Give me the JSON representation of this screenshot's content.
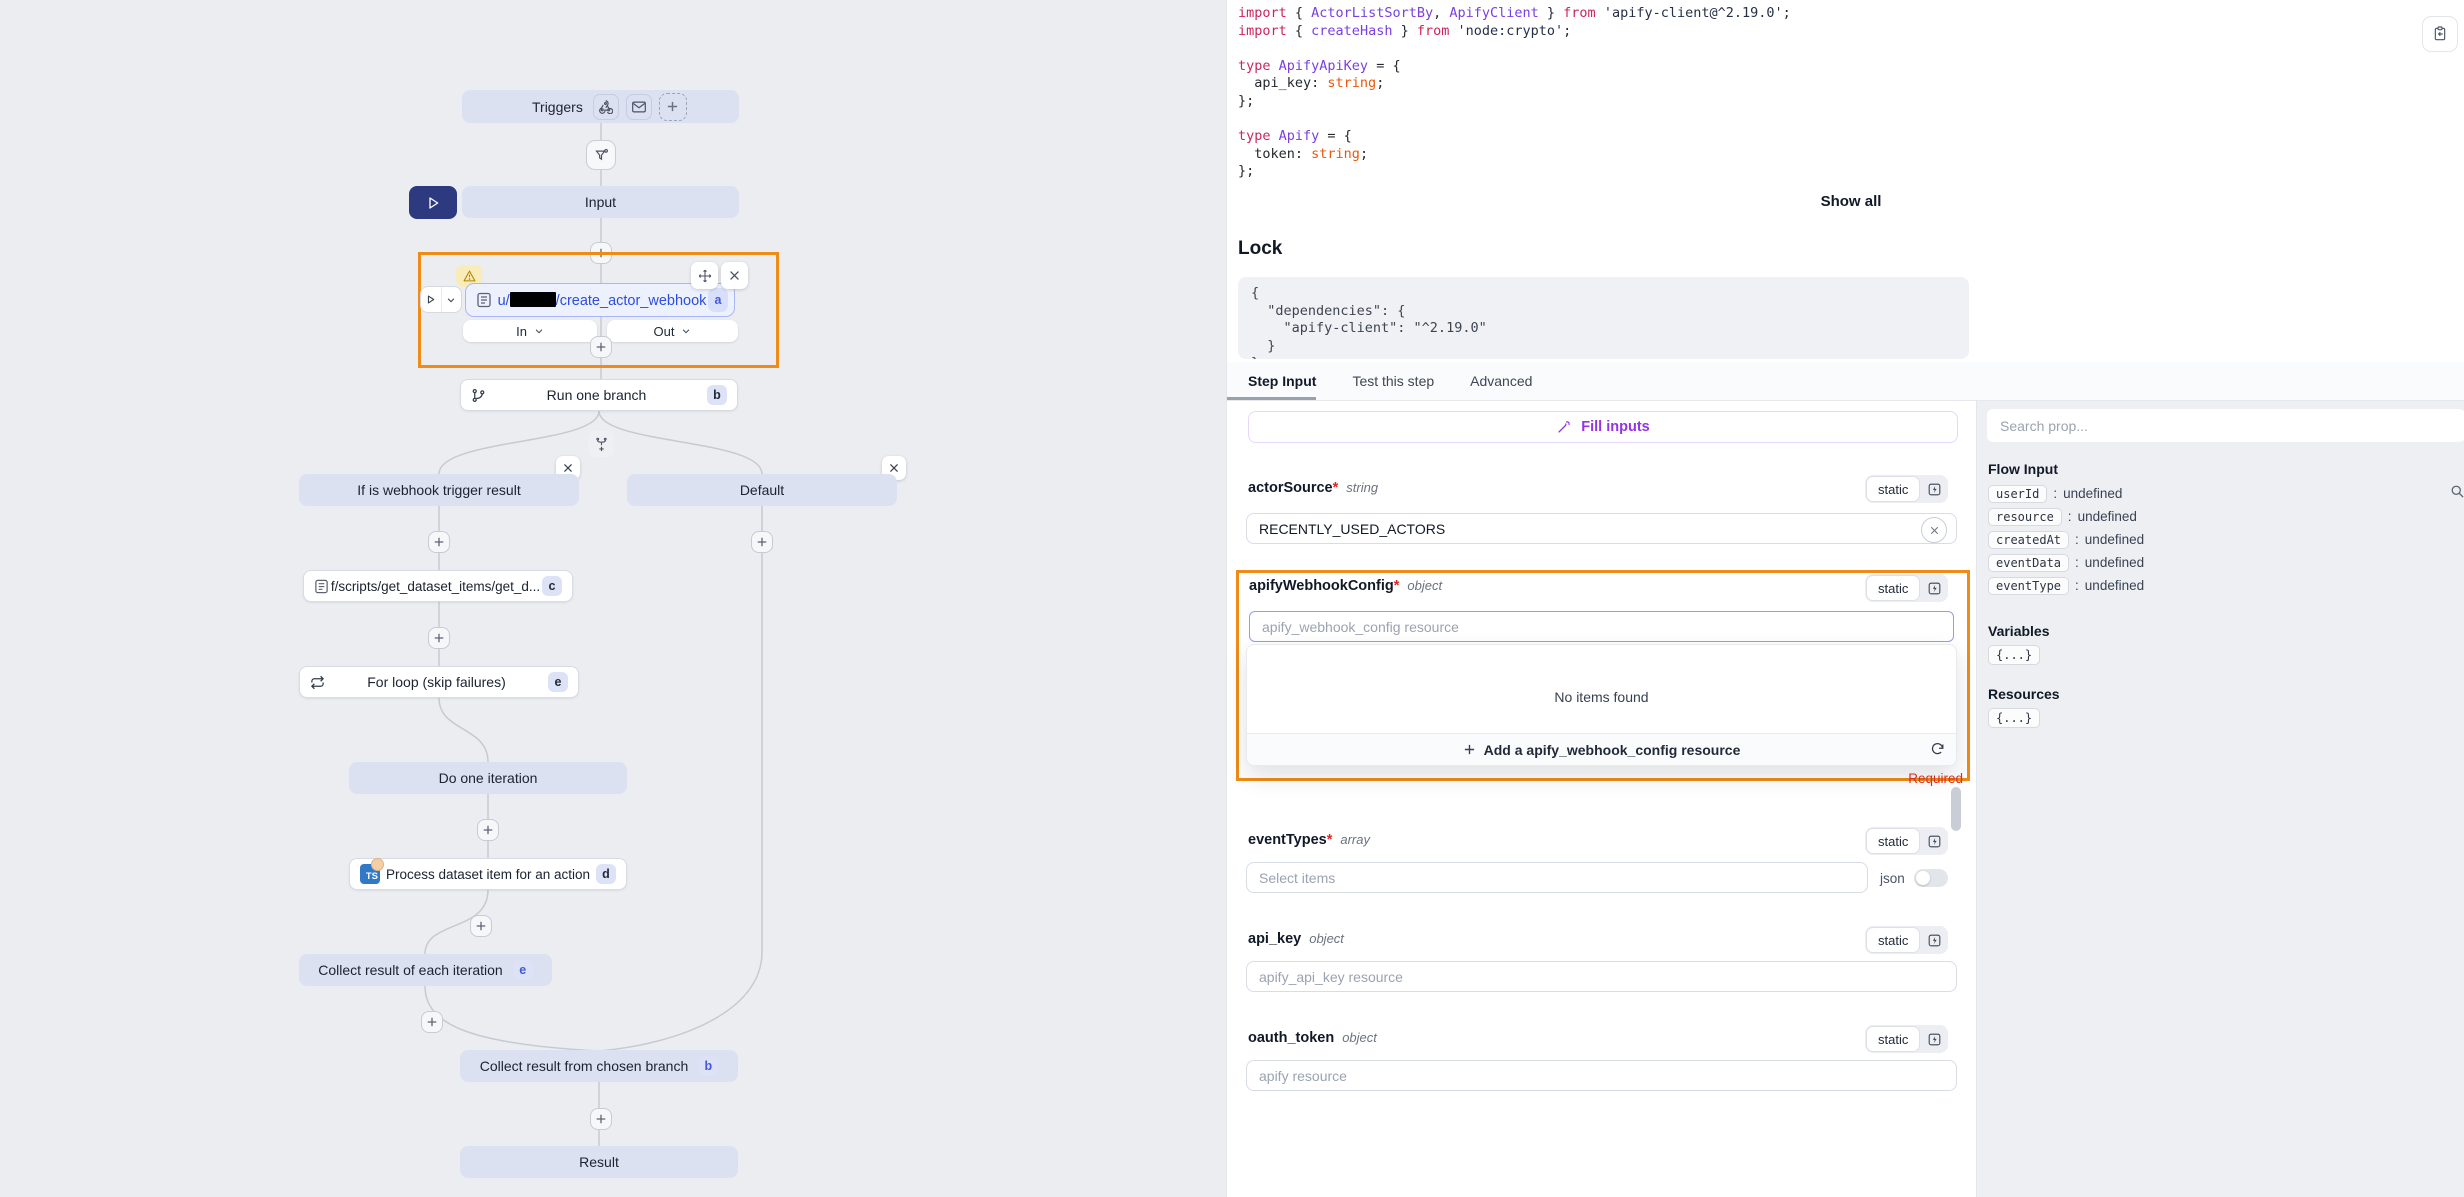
{
  "colors": {
    "highlight_orange": "#ef8b17",
    "accent_purple": "#9333ea",
    "selected_blue": "#2b4de0"
  },
  "canvas": {
    "triggers": {
      "label": "Triggers"
    },
    "input": {
      "label": "Input"
    },
    "selected_node": {
      "prefix": "u/",
      "suffix": "/create_actor_webhook",
      "badge": "a"
    },
    "in_label": "In",
    "out_label": "Out",
    "run_one_branch": {
      "label": "Run one branch",
      "badge": "b"
    },
    "branch_if": {
      "label": "If is webhook trigger result"
    },
    "branch_default": {
      "label": "Default"
    },
    "script_node": {
      "label": "f/scripts/get_dataset_items/get_d...",
      "badge": "c"
    },
    "for_loop": {
      "label": "For loop (skip failures)",
      "badge": "e"
    },
    "do_one_iteration": {
      "label": "Do one iteration"
    },
    "process_node": {
      "label": "Process dataset item for an action",
      "badge": "d",
      "icon_text": "TS"
    },
    "collect_iteration": {
      "label": "Collect result of each iteration",
      "badge": "e"
    },
    "collect_chosen": {
      "label": "Collect result from chosen branch",
      "badge": "b"
    },
    "result": {
      "label": "Result"
    }
  },
  "code": {
    "show_all": "Show all",
    "lines": [
      [
        {
          "t": "import",
          "c": "kw"
        },
        {
          "t": " { ",
          "c": "pl"
        },
        {
          "t": "ActorListSortBy",
          "c": "id"
        },
        {
          "t": ", ",
          "c": "pl"
        },
        {
          "t": "ApifyClient",
          "c": "id"
        },
        {
          "t": " } ",
          "c": "pl"
        },
        {
          "t": "from",
          "c": "kw"
        },
        {
          "t": " ",
          "c": "pl"
        },
        {
          "t": "'apify-client@^2.19.0'",
          "c": "str"
        },
        {
          "t": ";",
          "c": "pl"
        }
      ],
      [
        {
          "t": "import",
          "c": "kw"
        },
        {
          "t": " { ",
          "c": "pl"
        },
        {
          "t": "createHash",
          "c": "id"
        },
        {
          "t": " } ",
          "c": "pl"
        },
        {
          "t": "from",
          "c": "kw"
        },
        {
          "t": " ",
          "c": "pl"
        },
        {
          "t": "'node:crypto'",
          "c": "str"
        },
        {
          "t": ";",
          "c": "pl"
        }
      ],
      [],
      [
        {
          "t": "type",
          "c": "kw"
        },
        {
          "t": " ",
          "c": "pl"
        },
        {
          "t": "ApifyApiKey",
          "c": "id"
        },
        {
          "t": " = {",
          "c": "pl"
        }
      ],
      [
        {
          "t": "  api_key: ",
          "c": "pl"
        },
        {
          "t": "string",
          "c": "orange"
        },
        {
          "t": ";",
          "c": "pl"
        }
      ],
      [
        {
          "t": "};",
          "c": "pl"
        }
      ],
      [],
      [
        {
          "t": "type",
          "c": "kw"
        },
        {
          "t": " ",
          "c": "pl"
        },
        {
          "t": "Apify",
          "c": "id"
        },
        {
          "t": " = {",
          "c": "pl"
        }
      ],
      [
        {
          "t": "  token: ",
          "c": "pl"
        },
        {
          "t": "string",
          "c": "orange"
        },
        {
          "t": ";",
          "c": "pl"
        }
      ],
      [
        {
          "t": "};",
          "c": "pl"
        }
      ]
    ]
  },
  "lock": {
    "title": "Lock",
    "lines": [
      "{",
      "  \"dependencies\": {",
      "    \"apify-client\": \"^2.19.0\"",
      "  }",
      "}"
    ]
  },
  "tabs": [
    {
      "label": "Step Input"
    },
    {
      "label": "Test this step"
    },
    {
      "label": "Advanced"
    }
  ],
  "form": {
    "fill_inputs": "Fill inputs",
    "static_label": "static",
    "required_star": "*",
    "actor_source": {
      "name": "actorSource",
      "type": "string",
      "value": "RECENTLY_USED_ACTORS"
    },
    "webhook_config": {
      "name": "apifyWebhookConfig",
      "type": "object",
      "placeholder": "apify_webhook_config resource",
      "empty": "No items found",
      "add_label": "Add a apify_webhook_config resource",
      "required": "Required"
    },
    "event_types": {
      "name": "eventTypes",
      "type": "array",
      "placeholder": "Select items",
      "json_label": "json"
    },
    "api_key": {
      "name": "api_key",
      "type": "object",
      "placeholder": "apify_api_key resource"
    },
    "oauth_token": {
      "name": "oauth_token",
      "type": "object",
      "placeholder": "apify resource"
    }
  },
  "sidebar": {
    "search_placeholder": "Search prop...",
    "flow_input_title": "Flow Input",
    "separator": ":",
    "props": [
      {
        "key": "userId",
        "value": "undefined"
      },
      {
        "key": "resource",
        "value": "undefined"
      },
      {
        "key": "createdAt",
        "value": "undefined"
      },
      {
        "key": "eventData",
        "value": "undefined"
      },
      {
        "key": "eventType",
        "value": "undefined"
      }
    ],
    "variables_title": "Variables",
    "variables_value": "{...}",
    "resources_title": "Resources",
    "resources_value": "{...}"
  }
}
